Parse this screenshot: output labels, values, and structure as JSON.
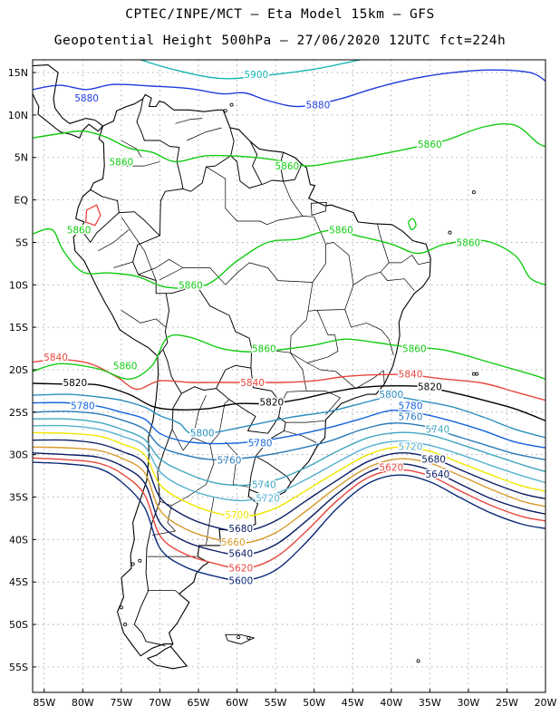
{
  "title_line1": "CPTEC/INPE/MCT –  Eta Model 15km – GFS",
  "title_line2": "Geopotential Height 500hPa – 27/06/2020 12UTC fct=224h",
  "lon_labels": [
    "85W",
    "80W",
    "75W",
    "70W",
    "65W",
    "60W",
    "55W",
    "50W",
    "45W",
    "40W",
    "35W",
    "30W",
    "25W",
    "20W"
  ],
  "lat_labels": [
    "15N",
    "10N",
    "5N",
    "EQ",
    "5S",
    "10S",
    "15S",
    "20S",
    "25S",
    "30S",
    "35S",
    "40S",
    "45S",
    "50S",
    "55S"
  ],
  "map_extent": {
    "lon": [
      -86.5,
      -20
    ],
    "lat": [
      -58,
      16.5
    ]
  },
  "grid": "dotted",
  "colors": {
    "5900": "#19b4b4",
    "5880": "#1e3cdc",
    "5860": "#12cc12",
    "5840": "#e6463c",
    "5820": "#000000",
    "5800": "#2b8fbf",
    "5780": "#1464dc",
    "5760": "#2a7ab8",
    "5740": "#3fa6c0",
    "5720": "#57b0d0",
    "5700": "#f0e600",
    "5680": "#0a1e64",
    "5660": "#d89a2a",
    "5640": "#0a1e64",
    "5620": "#e6463c",
    "5600": "#0a2a78",
    "coast": "#000000"
  },
  "contours": [
    {
      "level": "5900",
      "labels": [
        {
          "text": "5900",
          "lon": -57.5,
          "lat": 14.8
        }
      ]
    },
    {
      "level": "5880",
      "labels": [
        {
          "text": "5880",
          "lon": -79.5,
          "lat": 12.0
        },
        {
          "text": "5880",
          "lon": -49.5,
          "lat": 11.2
        }
      ]
    },
    {
      "level": "5860",
      "labels": [
        {
          "text": "5860",
          "lon": -35.0,
          "lat": 6.6
        },
        {
          "text": "5860",
          "lon": -75.0,
          "lat": 4.5
        },
        {
          "text": "5860",
          "lon": -53.5,
          "lat": 4.0
        },
        {
          "text": "5860",
          "lon": -46.5,
          "lat": -3.5
        },
        {
          "text": "5860",
          "lon": -30.0,
          "lat": -5.0
        },
        {
          "text": "5860",
          "lon": -80.5,
          "lat": -3.5
        },
        {
          "text": "5860",
          "lon": -66.0,
          "lat": -10.0
        },
        {
          "text": "5860",
          "lon": -56.5,
          "lat": -17.5
        },
        {
          "text": "5860",
          "lon": -74.5,
          "lat": -19.5
        },
        {
          "text": "5860",
          "lon": -37.0,
          "lat": -17.5
        }
      ]
    },
    {
      "level": "5840",
      "labels": [
        {
          "text": "5840",
          "lon": -83.5,
          "lat": -18.5
        },
        {
          "text": "5840",
          "lon": -58.0,
          "lat": -21.5
        },
        {
          "text": "5840",
          "lon": -37.5,
          "lat": -20.5
        }
      ]
    },
    {
      "level": "5820",
      "labels": [
        {
          "text": "5820",
          "lon": -81.0,
          "lat": -21.5
        },
        {
          "text": "5820",
          "lon": -55.5,
          "lat": -23.8
        },
        {
          "text": "5820",
          "lon": -35.0,
          "lat": -22.0
        }
      ]
    },
    {
      "level": "5800",
      "labels": [
        {
          "text": "5800",
          "lon": -40.0,
          "lat": -22.9
        },
        {
          "text": "5800",
          "lon": -64.5,
          "lat": -27.4
        }
      ]
    },
    {
      "level": "5780",
      "labels": [
        {
          "text": "5780",
          "lon": -80.0,
          "lat": -24.2
        },
        {
          "text": "5780",
          "lon": -37.5,
          "lat": -24.2
        },
        {
          "text": "5780",
          "lon": -57.0,
          "lat": -28.6
        }
      ]
    },
    {
      "level": "5760",
      "labels": [
        {
          "text": "5760",
          "lon": -37.5,
          "lat": -25.5
        },
        {
          "text": "5760",
          "lon": -61.0,
          "lat": -30.6
        }
      ]
    },
    {
      "level": "5740",
      "labels": [
        {
          "text": "5740",
          "lon": -34.0,
          "lat": -27.0
        },
        {
          "text": "5740",
          "lon": -56.5,
          "lat": -33.5
        }
      ]
    },
    {
      "level": "5720",
      "labels": [
        {
          "text": "5720",
          "lon": -37.5,
          "lat": -29.0
        },
        {
          "text": "5720",
          "lon": -56.0,
          "lat": -35.1
        }
      ]
    },
    {
      "level": "5700",
      "labels": [
        {
          "text": "5700",
          "lon": -60.0,
          "lat": -37.1
        }
      ]
    },
    {
      "level": "5680",
      "labels": [
        {
          "text": "5680",
          "lon": -34.5,
          "lat": -30.5
        },
        {
          "text": "5680",
          "lon": -59.5,
          "lat": -38.7
        }
      ]
    },
    {
      "level": "5660",
      "labels": [
        {
          "text": "5660",
          "lon": -60.5,
          "lat": -40.3
        }
      ]
    },
    {
      "level": "5640",
      "labels": [
        {
          "text": "5640",
          "lon": -34.0,
          "lat": -32.3
        },
        {
          "text": "5640",
          "lon": -59.5,
          "lat": -41.6
        }
      ]
    },
    {
      "level": "5620",
      "labels": [
        {
          "text": "5620",
          "lon": -40.0,
          "lat": -31.5
        },
        {
          "text": "5620",
          "lon": -59.5,
          "lat": -43.3
        }
      ]
    },
    {
      "level": "5600",
      "labels": [
        {
          "text": "5600",
          "lon": -59.5,
          "lat": -44.8
        }
      ]
    }
  ]
}
